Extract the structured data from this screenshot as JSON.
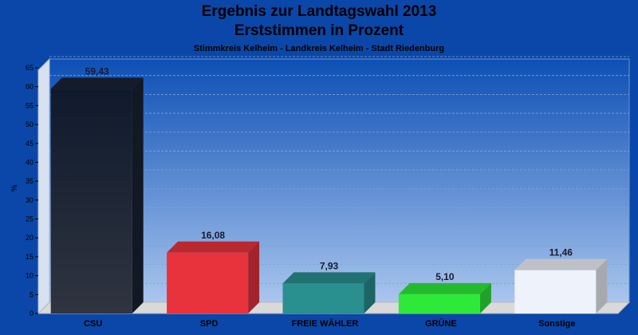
{
  "header": {
    "title_line1": "Ergebnis zur Landtagswahl 2013",
    "title_line2": "Erststimmen in Prozent",
    "subtitle": "Stimmkreis Kelheim - Landkreis Kelheim - Stadt Riedenburg"
  },
  "chart_data": {
    "type": "bar",
    "title": "Ergebnis zur Landtagswahl 2013 Erststimmen in Prozent",
    "subtitle": "Stimmkreis Kelheim - Landkreis Kelheim - Stadt Riedenburg",
    "xlabel": "",
    "ylabel": "%",
    "ylim": [
      0,
      65
    ],
    "yticks": [
      0,
      5,
      10,
      15,
      20,
      25,
      30,
      35,
      40,
      45,
      50,
      55,
      60,
      65
    ],
    "grid": true,
    "categories": [
      "CSU",
      "SPD",
      "FREIE WÄHLER",
      "GRÜNE",
      "Sonstige"
    ],
    "values": [
      59.43,
      16.08,
      7.93,
      5.1,
      11.46
    ],
    "value_labels": [
      "59,43",
      "16,08",
      "7,93",
      "5,10",
      "11,46"
    ],
    "colors": [
      "#1a2233",
      "#e8323c",
      "#2a8f8f",
      "#2ee83a",
      "#eef2fa"
    ]
  }
}
